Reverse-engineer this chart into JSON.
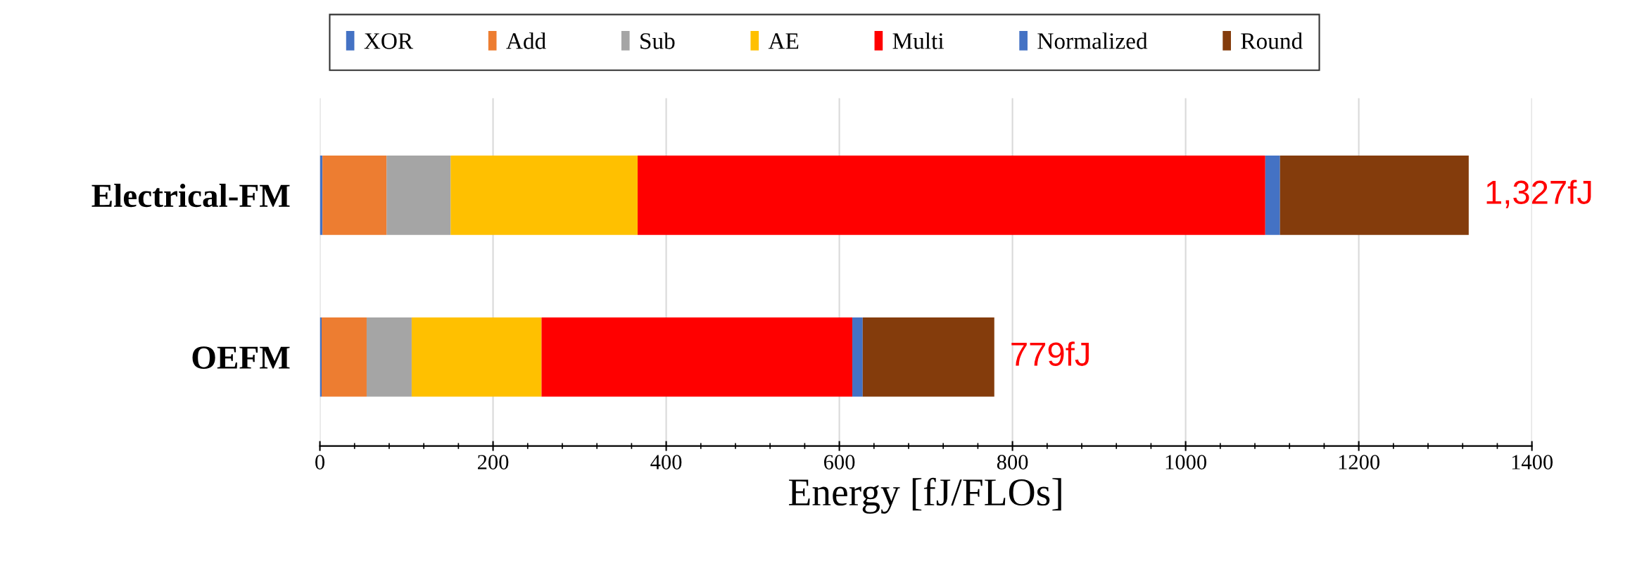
{
  "chart_data": {
    "type": "bar",
    "orientation": "horizontal",
    "stacked": true,
    "categories": [
      "Electrical-FM",
      "OEFM"
    ],
    "series": [
      {
        "name": "XOR",
        "color": "#4472c4",
        "values": [
          3,
          2
        ]
      },
      {
        "name": "Add",
        "color": "#ed7d31",
        "values": [
          74,
          52
        ]
      },
      {
        "name": "Sub",
        "color": "#a5a5a5",
        "values": [
          74,
          52
        ]
      },
      {
        "name": "AE",
        "color": "#ffc000",
        "values": [
          216,
          150
        ]
      },
      {
        "name": "Multi",
        "color": "#ff0000",
        "values": [
          725,
          359
        ]
      },
      {
        "name": "Normalized",
        "color": "#4472c4",
        "values": [
          17,
          12
        ]
      },
      {
        "name": "Round",
        "color": "#843c0c",
        "values": [
          218,
          152
        ]
      }
    ],
    "totals": [
      "1,327fJ",
      "779fJ"
    ],
    "xlabel": "Energy [fJ/FLOs]",
    "xlim": [
      0,
      1400
    ],
    "xticks": [
      0,
      200,
      400,
      600,
      800,
      1000,
      1200,
      1400
    ],
    "grid": "x",
    "legend": "top"
  }
}
